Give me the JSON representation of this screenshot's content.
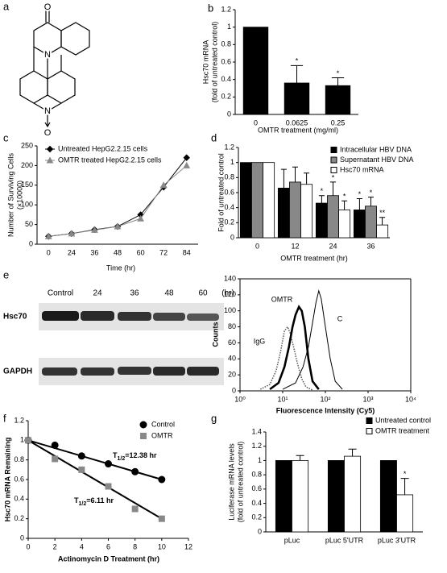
{
  "panel_labels": [
    "a",
    "b",
    "c",
    "d",
    "e",
    "f",
    "g"
  ],
  "structure": {
    "atoms": [
      "O",
      "N",
      "N",
      "O"
    ]
  },
  "blot": {
    "lanes": [
      "Control",
      "24",
      "36",
      "48",
      "60"
    ],
    "unit": "(hr)",
    "rows": [
      "Hsc70",
      "GAPDH"
    ]
  },
  "chart_data": [
    {
      "type": "bar",
      "categories": [
        "0",
        "0.0625",
        "0.25"
      ],
      "values": [
        1,
        0.36,
        0.33
      ],
      "errors": [
        null,
        0.2,
        0.09
      ],
      "significance": [
        null,
        "*",
        "*"
      ],
      "color": "#000000",
      "ylabel": [
        "Hsc70 mRNA",
        "(fold of untreated control)"
      ],
      "xlabel": "OMTR treatment (mg/ml)",
      "ylim": [
        0,
        1.2
      ],
      "yticks": [
        0,
        0.2,
        0.4,
        0.6,
        0.8,
        1,
        1.2
      ]
    },
    {
      "type": "line",
      "categories": [
        "0",
        "24",
        "36",
        "48",
        "60",
        "72",
        "84"
      ],
      "series": [
        {
          "name": "Untreated HepG2.2.15 cells",
          "color": "#000000",
          "marker": "diamond",
          "values": [
            20,
            27,
            37,
            45,
            75,
            145,
            220
          ]
        },
        {
          "name": "OMTR treated HepG2.2.15 cells",
          "color": "#888888",
          "marker": "triangle",
          "values": [
            20,
            27,
            36,
            45,
            65,
            150,
            200
          ]
        }
      ],
      "ylabel": [
        "Number of Surviving Cells",
        "(×10000)"
      ],
      "xlabel": "Time (hr)",
      "ylim": [
        0,
        250
      ],
      "yticks": [
        0,
        50,
        100,
        150,
        200,
        250
      ],
      "legend": "upper left"
    },
    {
      "type": "bar",
      "categories": [
        "0",
        "12",
        "24",
        "36"
      ],
      "series": [
        {
          "name": "Intracellular HBV DNA",
          "color": "#000000",
          "values": [
            1,
            0.66,
            0.46,
            0.37
          ],
          "errors": [
            null,
            0.25,
            0.1,
            0.15
          ],
          "significance": [
            null,
            null,
            "*",
            "*"
          ]
        },
        {
          "name": "Supernatant HBV DNA",
          "color": "#888888",
          "values": [
            1,
            0.74,
            0.56,
            0.42
          ],
          "errors": [
            null,
            0.2,
            0.18,
            0.12
          ],
          "significance": [
            null,
            null,
            "*",
            "*"
          ]
        },
        {
          "name": "Hsc70 mRNA",
          "color": "#ffffff",
          "values": [
            1,
            0.71,
            0.37,
            0.17
          ],
          "errors": [
            null,
            0.15,
            0.12,
            0.1
          ],
          "significance": [
            null,
            null,
            "*",
            "**"
          ]
        }
      ],
      "ylabel": "Fold of untreated control",
      "xlabel": "OMTR treatment (hr)",
      "ylim": [
        0,
        1.2
      ],
      "yticks": [
        0,
        0.2,
        0.4,
        0.6,
        0.8,
        1,
        1.2
      ],
      "legend": "upper right"
    },
    {
      "type": "line",
      "xscale": "log",
      "series": [
        {
          "name": "IgG",
          "color": "#555555",
          "line_style": "dotted",
          "x": [
            3,
            5,
            7,
            9,
            11,
            13,
            15,
            18,
            22,
            28,
            35,
            50
          ],
          "values": [
            2,
            8,
            25,
            50,
            75,
            80,
            72,
            55,
            35,
            15,
            5,
            1
          ]
        },
        {
          "name": "OMTR",
          "color": "#000000",
          "line_style": "thick",
          "x": [
            5,
            8,
            11,
            14,
            17,
            20,
            24,
            28,
            33,
            40,
            50,
            70
          ],
          "values": [
            2,
            10,
            30,
            55,
            80,
            95,
            105,
            100,
            80,
            40,
            12,
            2
          ]
        },
        {
          "name": "C",
          "color": "#000000",
          "line_style": "solid",
          "x": [
            10,
            20,
            30,
            40,
            50,
            60,
            70,
            80,
            100,
            130,
            170,
            250
          ],
          "values": [
            2,
            10,
            30,
            55,
            85,
            110,
            125,
            115,
            80,
            40,
            12,
            2
          ]
        }
      ],
      "ylabel": "Counts",
      "xlabel": "Fluorescence Intensity (Cy5)",
      "xlim": [
        1,
        10000
      ],
      "xticks": [
        {
          "value": 1,
          "label": "10⁰"
        },
        {
          "value": 10,
          "label": "10¹"
        },
        {
          "value": 100,
          "label": "10²"
        },
        {
          "value": 1000,
          "label": "10³"
        },
        {
          "value": 10000,
          "label": "10⁴"
        }
      ],
      "ylim": [
        0,
        140
      ],
      "yticks": [
        0,
        20,
        40,
        60,
        80,
        100,
        120,
        140
      ]
    },
    {
      "type": "scatter",
      "x": [
        0,
        2,
        4,
        6,
        8,
        10
      ],
      "series": [
        {
          "name": "Control",
          "color": "#000000",
          "marker": "circle",
          "values": [
            1,
            0.95,
            0.84,
            0.76,
            0.68,
            0.6
          ],
          "fit": {
            "x": [
              0,
              10
            ],
            "values": [
              1,
              0.6
            ]
          }
        },
        {
          "name": "OMTR",
          "color": "#888888",
          "marker": "square",
          "values": [
            1,
            0.81,
            0.7,
            0.53,
            0.3,
            0.2
          ],
          "fit": {
            "x": [
              0,
              10
            ],
            "values": [
              1,
              0.2
            ]
          }
        }
      ],
      "annotations": [
        {
          "base": "T",
          "subscript": "1/2",
          "text": "=12.38 hr"
        },
        {
          "base": "T",
          "subscript": "1/2",
          "text": "=6.11 hr"
        }
      ],
      "ylabel": "Hsc70 mRNA Remaining",
      "xlabel": "Actinomycin D Treatment (hr)",
      "xlim": [
        0,
        12
      ],
      "xticks": [
        0,
        2,
        4,
        6,
        8,
        10,
        12
      ],
      "ylim": [
        0,
        1.2
      ],
      "yticks": [
        0,
        0.2,
        0.4,
        0.6,
        0.8,
        1,
        1.2
      ],
      "legend": "upper right"
    },
    {
      "type": "bar",
      "categories": [
        "pLuc",
        "pLuc 5'UTR",
        "pLuc 3'UTR"
      ],
      "series": [
        {
          "name": "Untreated control",
          "color": "#000000",
          "values": [
            1,
            1,
            1
          ]
        },
        {
          "name": "OMTR treatment",
          "color": "#ffffff",
          "values": [
            1,
            1.06,
            0.52
          ],
          "errors": [
            0.07,
            0.1,
            0.23
          ],
          "significance": [
            null,
            null,
            "*"
          ]
        }
      ],
      "ylabel": [
        "Luciferase mRNA levels",
        "(fold of untreated control)"
      ],
      "ylim": [
        0,
        1.4
      ],
      "yticks": [
        0,
        0.2,
        0.4,
        0.6,
        0.8,
        1,
        1.2,
        1.4
      ],
      "legend": "upper right"
    }
  ]
}
